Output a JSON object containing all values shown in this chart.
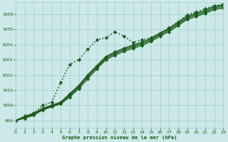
{
  "title": "Graphe pression niveau de la mer (hPa)",
  "background_color": "#cce8e8",
  "plot_bg_color": "#cce8e8",
  "line_color": "#1a5c1a",
  "grid_color": "#a8cccc",
  "text_color": "#1a5c1a",
  "xlim": [
    0,
    23
  ],
  "ylim": [
    998.5,
    1006.8
  ],
  "xticks": [
    0,
    1,
    2,
    3,
    4,
    5,
    6,
    7,
    8,
    9,
    10,
    11,
    12,
    13,
    14,
    15,
    16,
    17,
    18,
    19,
    20,
    21,
    22,
    23
  ],
  "yticks": [
    999,
    1000,
    1001,
    1002,
    1003,
    1004,
    1005,
    1006
  ],
  "series": [
    {
      "x": [
        0,
        1,
        2,
        3,
        4,
        5,
        6,
        7,
        8,
        9,
        10,
        11,
        12,
        13,
        14,
        15,
        16,
        17,
        18,
        19,
        20,
        21,
        22,
        23
      ],
      "y": [
        999.0,
        999.3,
        999.5,
        1000.0,
        1000.2,
        1001.5,
        1002.7,
        1003.0,
        1003.7,
        1004.3,
        1004.45,
        1004.85,
        1004.55,
        1004.15,
        1004.3,
        1004.45,
        1004.75,
        1005.1,
        1005.5,
        1005.95,
        1006.15,
        1006.35,
        1006.55,
        1006.65
      ],
      "linestyle": "dotted",
      "linewidth": 1.2,
      "marker": "D",
      "markersize": 2.5
    },
    {
      "x": [
        0,
        1,
        2,
        3,
        4,
        5,
        6,
        7,
        8,
        9,
        10,
        11,
        12,
        13,
        14,
        15,
        16,
        17,
        18,
        19,
        20,
        21,
        22,
        23
      ],
      "y": [
        999.0,
        999.25,
        999.45,
        999.8,
        1000.0,
        1000.2,
        1000.75,
        1001.3,
        1002.0,
        1002.6,
        1003.2,
        1003.5,
        1003.75,
        1003.95,
        1004.15,
        1004.4,
        1004.75,
        1005.05,
        1005.45,
        1005.85,
        1006.05,
        1006.25,
        1006.5,
        1006.6
      ],
      "linestyle": "solid",
      "linewidth": 1.2,
      "marker": "D",
      "markersize": 2.5
    },
    {
      "x": [
        0,
        1,
        2,
        3,
        4,
        5,
        6,
        7,
        8,
        9,
        10,
        11,
        12,
        13,
        14,
        15,
        16,
        17,
        18,
        19,
        20,
        21,
        22,
        23
      ],
      "y": [
        999.0,
        999.2,
        999.4,
        999.75,
        999.95,
        1000.15,
        1000.65,
        1001.2,
        1001.9,
        1002.5,
        1003.1,
        1003.4,
        1003.65,
        1003.85,
        1004.05,
        1004.3,
        1004.65,
        1004.95,
        1005.35,
        1005.75,
        1005.95,
        1006.15,
        1006.4,
        1006.5
      ],
      "linestyle": "solid",
      "linewidth": 1.0,
      "marker": "D",
      "markersize": 2.5
    },
    {
      "x": [
        0,
        1,
        2,
        3,
        4,
        5,
        6,
        7,
        8,
        9,
        10,
        11,
        12,
        13,
        14,
        15,
        16,
        17,
        18,
        19,
        20,
        21,
        22,
        23
      ],
      "y": [
        999.0,
        999.15,
        999.35,
        999.7,
        999.9,
        1000.1,
        1000.55,
        1001.1,
        1001.75,
        1002.4,
        1003.0,
        1003.3,
        1003.55,
        1003.75,
        1003.95,
        1004.2,
        1004.55,
        1004.85,
        1005.25,
        1005.65,
        1005.85,
        1006.05,
        1006.3,
        1006.4
      ],
      "linestyle": "solid",
      "linewidth": 1.0,
      "marker": "D",
      "markersize": 2.5
    }
  ]
}
